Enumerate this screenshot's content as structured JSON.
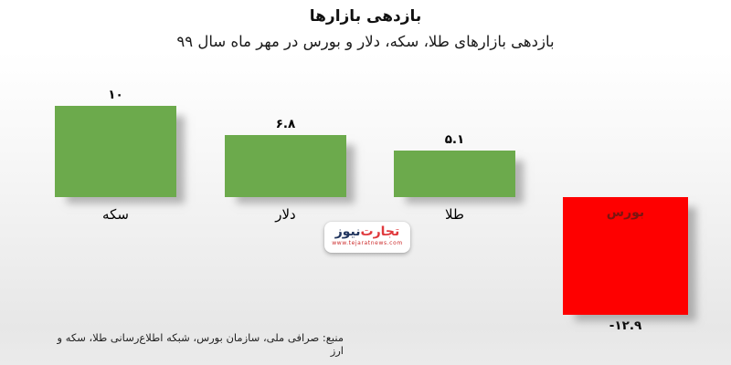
{
  "chart_data": {
    "type": "bar",
    "title": "بازدهی بازارها",
    "subtitle": "بازدهی بازارهای طلا، سکه، دلار و بورس در مهر ماه سال ۹۹",
    "categories": [
      "سکه",
      "دلار",
      "طلا",
      "بورس"
    ],
    "values": [
      10,
      6.8,
      5.1,
      -12.9
    ],
    "value_labels": [
      "۱۰",
      "۶.۸",
      "۵.۱",
      "-۱۲.۹"
    ],
    "positive_color": "#6caa4c",
    "negative_color": "#fe0000",
    "ylim": [
      -14,
      11
    ],
    "grid": false,
    "legend": false,
    "orientation": "vertical",
    "value_axis": "hidden"
  },
  "source_note": "منبع: صرافی ملی، سازمان بورس، شبکه اطلاع‌رسانی طلا، سکه و ارز",
  "logo": {
    "brand_first": "تجارت",
    "brand_second": "نیوز",
    "url": "www.tejaratnews.com"
  },
  "style_colors": {
    "negative_label": "#7b1510",
    "logo_red": "#e0393d",
    "logo_blue": "#21355e"
  }
}
